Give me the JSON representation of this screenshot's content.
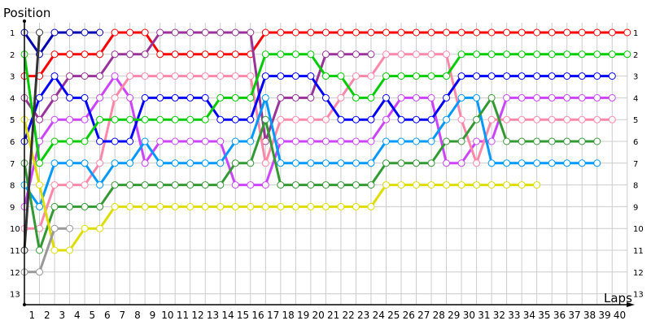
{
  "chart_data": {
    "type": "line",
    "title": "",
    "ylabel": "Position",
    "xlabel": "Laps",
    "xlim": [
      0,
      40
    ],
    "ylim": [
      1,
      13
    ],
    "y_inverted": true,
    "grid": true,
    "x_ticks": [
      "1",
      "2",
      "3",
      "4",
      "5",
      "6",
      "7",
      "8",
      "9",
      "10",
      "11",
      "12",
      "13",
      "14",
      "15",
      "16",
      "17",
      "18",
      "19",
      "20",
      "21",
      "22",
      "23",
      "24",
      "25",
      "26",
      "27",
      "28",
      "29",
      "30",
      "31",
      "32",
      "33",
      "34",
      "35",
      "36",
      "37",
      "38",
      "39",
      "40"
    ],
    "y_ticks": [
      "1",
      "2",
      "3",
      "4",
      "5",
      "6",
      "7",
      "8",
      "9",
      "10",
      "11",
      "12",
      "13"
    ],
    "series": [
      {
        "color": "#0000b0",
        "start_lap": 0,
        "positions": [
          1,
          2,
          1,
          1,
          1,
          1
        ]
      },
      {
        "color": "#ff0000",
        "start_lap": 0,
        "positions": [
          3,
          3,
          2,
          2,
          2,
          2,
          1,
          1,
          1,
          2,
          2,
          2,
          2,
          2,
          2,
          2,
          1,
          1,
          1,
          1,
          1,
          1,
          1,
          1,
          1,
          1,
          1,
          1,
          1,
          1,
          1,
          1,
          1,
          1,
          1,
          1,
          1,
          1,
          1,
          1,
          1
        ]
      },
      {
        "color": "#993399",
        "start_lap": 0,
        "positions": [
          4,
          5,
          4,
          3,
          3,
          3,
          2,
          2,
          2,
          1,
          1,
          1,
          1,
          1,
          1,
          1,
          6,
          4,
          4,
          4,
          2,
          2,
          2,
          2
        ]
      },
      {
        "color": "#cc44ff",
        "start_lap": 0,
        "positions": [
          9,
          6,
          5,
          5,
          5,
          4,
          3,
          4,
          7,
          6,
          6,
          6,
          6,
          6,
          8,
          8,
          8,
          6,
          6,
          6,
          6,
          6,
          6,
          6,
          5,
          4,
          4,
          4,
          7,
          7,
          6,
          6,
          4,
          4,
          4,
          4,
          4,
          4,
          4,
          4
        ]
      },
      {
        "color": "#ff88aa",
        "start_lap": 0,
        "positions": [
          10,
          10,
          8,
          8,
          8,
          7,
          4,
          3,
          3,
          3,
          3,
          3,
          3,
          3,
          3,
          3,
          7,
          5,
          5,
          5,
          5,
          4,
          3,
          3,
          2,
          2,
          2,
          2,
          2,
          5,
          7,
          5,
          5,
          5,
          5,
          5,
          5,
          5,
          5,
          5
        ]
      },
      {
        "color": "#0000ff",
        "start_lap": 0,
        "positions": [
          6,
          4,
          3,
          4,
          4,
          6,
          6,
          6,
          4,
          4,
          4,
          4,
          4,
          5,
          5,
          5,
          3,
          3,
          3,
          3,
          4,
          5,
          5,
          5,
          4,
          5,
          5,
          5,
          4,
          3,
          3,
          3,
          3,
          3,
          3,
          3,
          3,
          3,
          3,
          3
        ]
      },
      {
        "color": "#00cc00",
        "start_lap": 0,
        "positions": [
          2,
          7,
          6,
          6,
          6,
          5,
          5,
          5,
          5,
          5,
          5,
          5,
          5,
          4,
          4,
          4,
          2,
          2,
          2,
          2,
          3,
          3,
          4,
          4,
          3,
          3,
          3,
          3,
          3,
          2,
          2,
          2,
          2,
          2,
          2,
          2,
          2,
          2,
          2,
          2,
          2
        ]
      },
      {
        "color": "#0099ff",
        "start_lap": 0,
        "positions": [
          8,
          9,
          7,
          7,
          7,
          8,
          7,
          7,
          6,
          7,
          7,
          7,
          7,
          7,
          6,
          6,
          4,
          7,
          7,
          7,
          7,
          7,
          7,
          7,
          6,
          6,
          6,
          6,
          5,
          4,
          4,
          7,
          7,
          7,
          7,
          7,
          7,
          7,
          7
        ]
      },
      {
        "color": "#339933",
        "start_lap": 0,
        "positions": [
          7,
          11,
          9,
          9,
          9,
          9,
          8,
          8,
          8,
          8,
          8,
          8,
          8,
          8,
          7,
          7,
          5,
          8,
          8,
          8,
          8,
          8,
          8,
          8,
          7,
          7,
          7,
          7,
          6,
          6,
          5,
          4,
          6,
          6,
          6,
          6,
          6,
          6,
          6
        ]
      },
      {
        "color": "#dddd00",
        "start_lap": 0,
        "positions": [
          5,
          8,
          11,
          11,
          10,
          10,
          9,
          9,
          9,
          9,
          9,
          9,
          9,
          9,
          9,
          9,
          9,
          9,
          9,
          9,
          9,
          9,
          9,
          9,
          8,
          8,
          8,
          8,
          8,
          8,
          8,
          8,
          8,
          8,
          8
        ]
      },
      {
        "color": "#999999",
        "start_lap": 0,
        "positions": [
          12,
          12,
          10,
          10
        ]
      },
      {
        "color": "#333333",
        "start_lap": 0,
        "positions": [
          11,
          1
        ]
      }
    ]
  }
}
